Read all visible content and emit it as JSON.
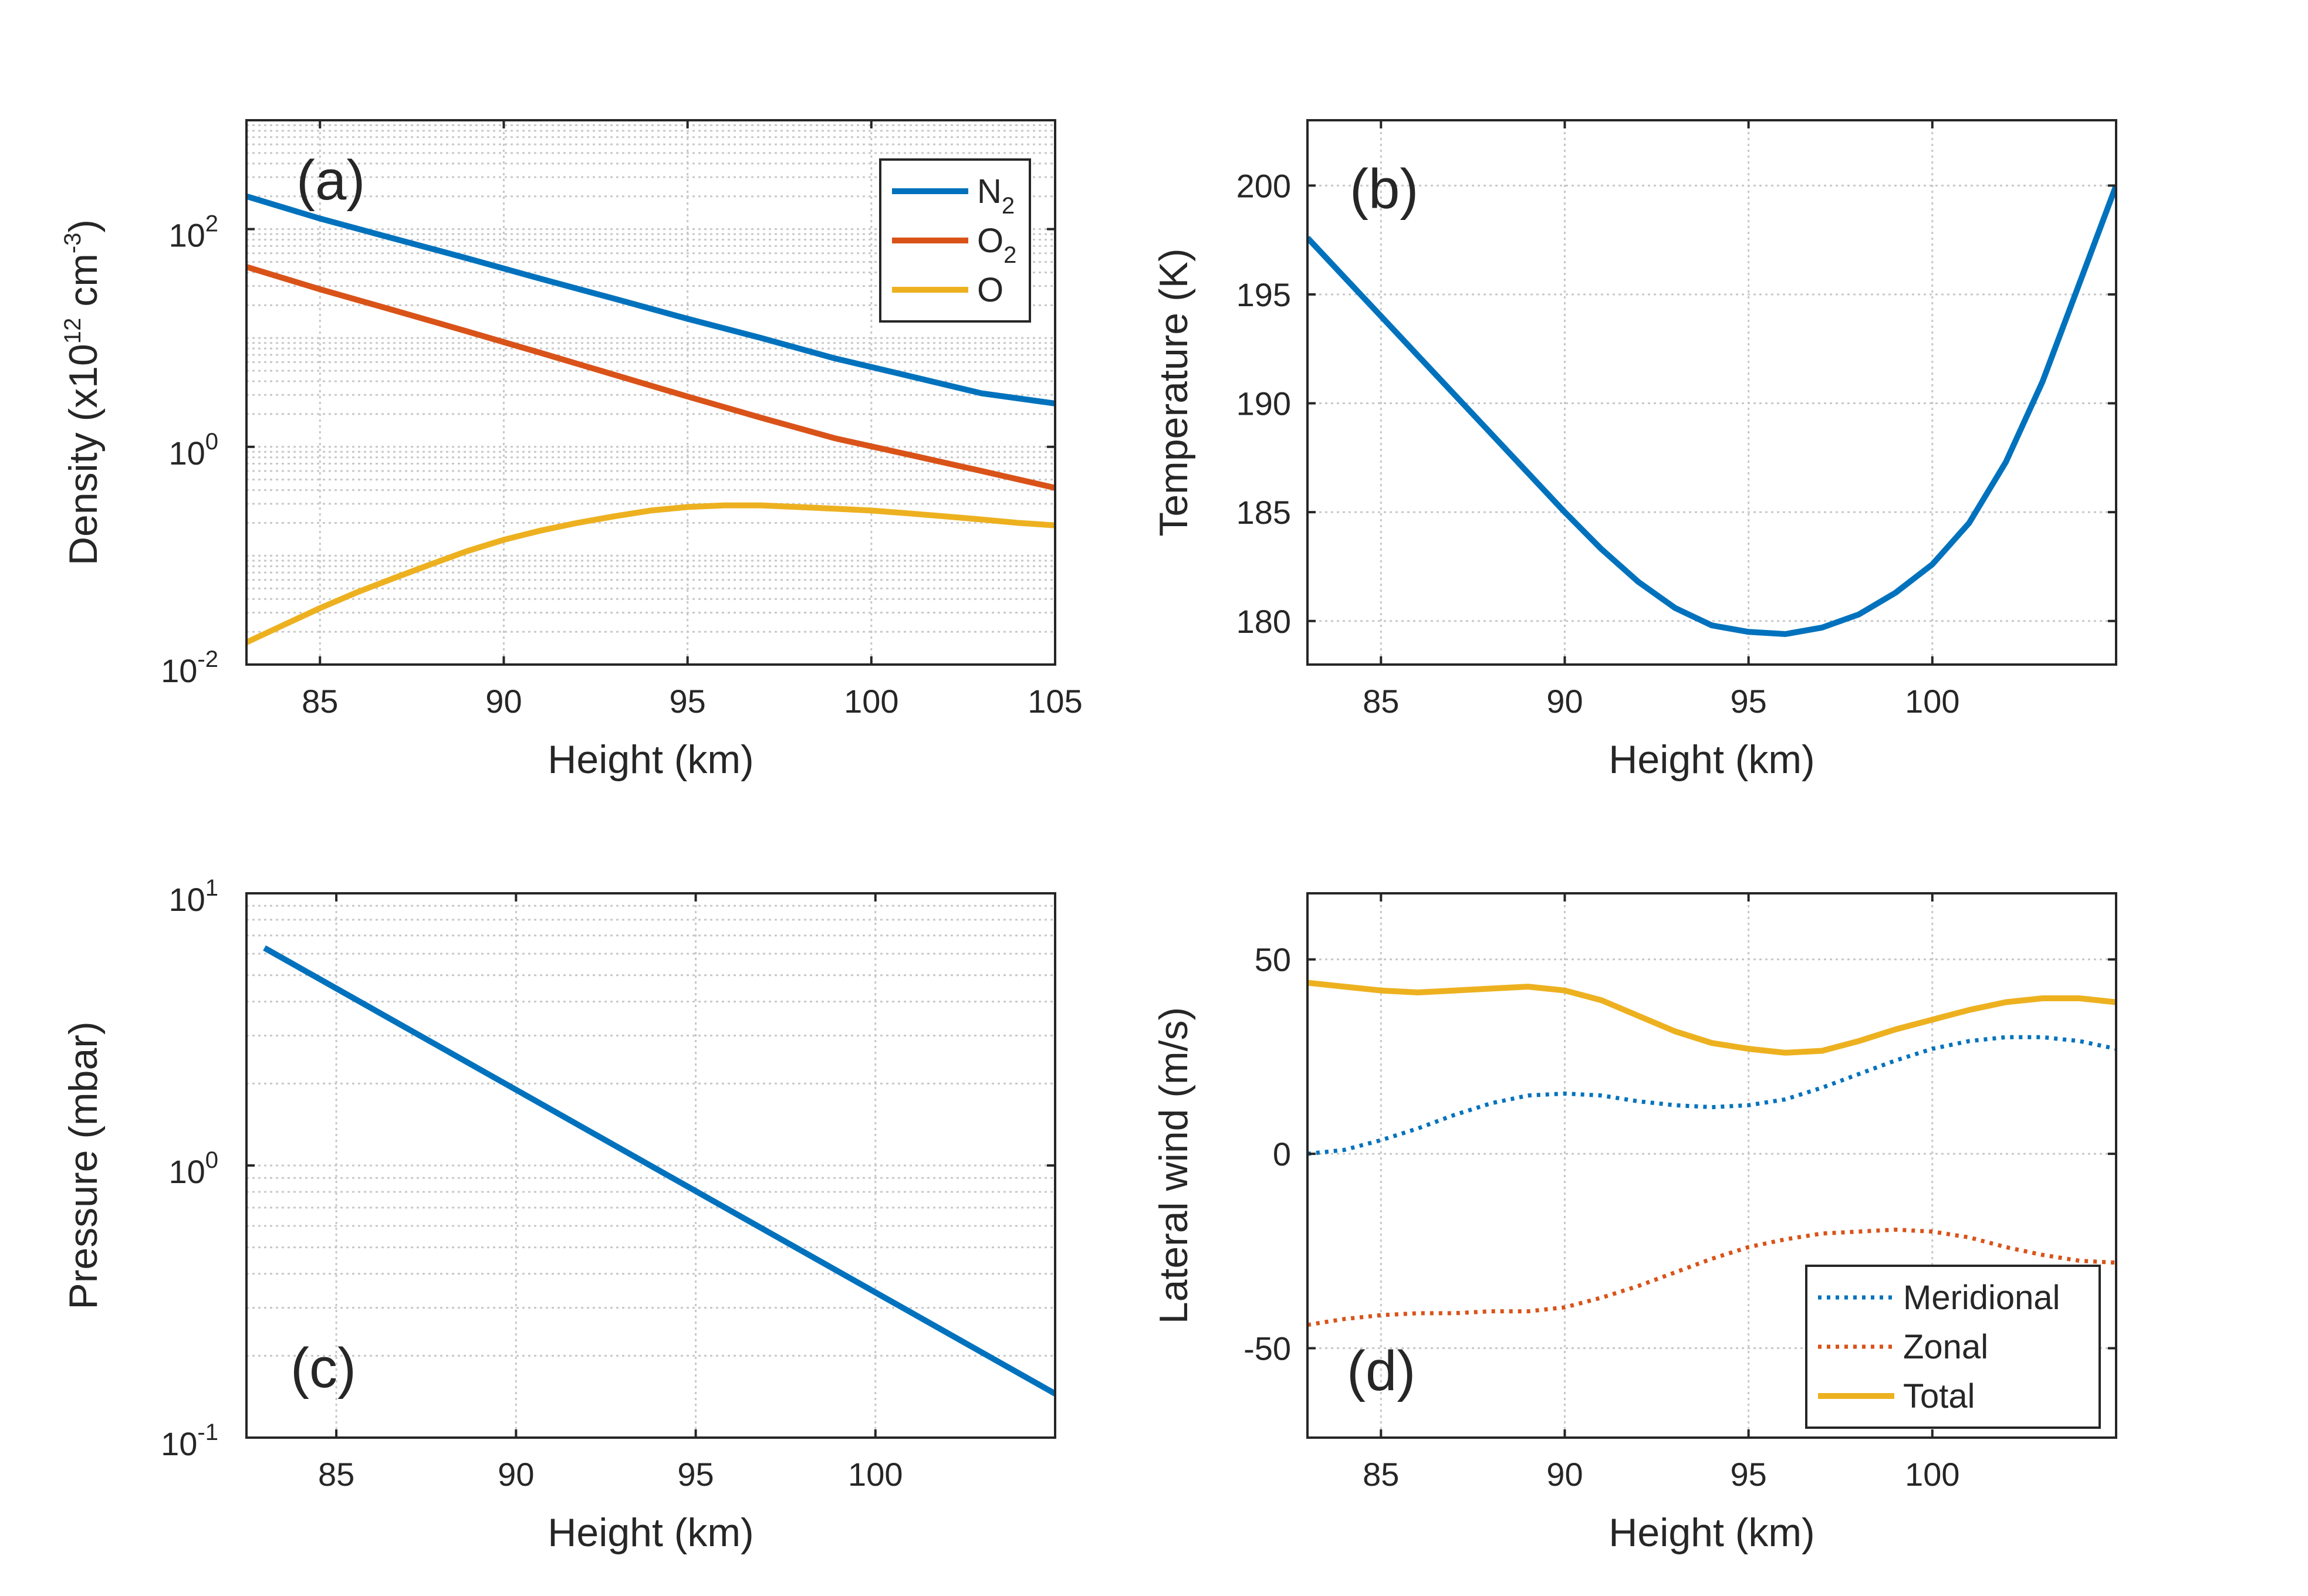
{
  "colors": {
    "blue": "#0072BD",
    "orange": "#D95319",
    "yellow": "#EDB120",
    "axis": "#262626",
    "grid": "#c8c8c8"
  },
  "chart_data": [
    {
      "id": "a",
      "type": "line",
      "panel_label": "(a)",
      "xlabel": "Height (km)",
      "ylabel": {
        "main": "Density (x10",
        "exp": "12",
        "unit": " cm",
        "unit_exp": "-3",
        "close": ")"
      },
      "yscale": "log",
      "xlim": [
        83,
        105
      ],
      "ylim": [
        0.01,
        1000
      ],
      "xticks": [
        85,
        90,
        95,
        100,
        105
      ],
      "yticks": [
        {
          "value": 0.01,
          "base": "10",
          "exp": "-2"
        },
        {
          "value": 1,
          "base": "10",
          "exp": "0"
        },
        {
          "value": 100,
          "base": "10",
          "exp": "2"
        }
      ],
      "legend_position": "top-right",
      "series": [
        {
          "name": "N",
          "sub": "2",
          "color": "#0072BD",
          "style": "solid",
          "x": [
            83,
            85,
            87,
            89,
            91,
            93,
            95,
            97,
            99,
            101,
            103,
            105
          ],
          "y": [
            200,
            125,
            82,
            54,
            35,
            23,
            15,
            10,
            6.5,
            4.5,
            3.1,
            2.5
          ]
        },
        {
          "name": "O",
          "sub": "2",
          "color": "#D95319",
          "style": "solid",
          "x": [
            83,
            85,
            87,
            89,
            91,
            93,
            95,
            97,
            99,
            101,
            103,
            105
          ],
          "y": [
            45,
            28,
            18,
            11.5,
            7.3,
            4.6,
            2.9,
            1.85,
            1.2,
            0.85,
            0.6,
            0.42
          ]
        },
        {
          "name": "O",
          "sub": "",
          "color": "#EDB120",
          "style": "solid",
          "x": [
            83,
            84,
            85,
            86,
            87,
            88,
            89,
            90,
            91,
            92,
            93,
            94,
            95,
            96,
            97,
            98,
            99,
            100,
            101,
            102,
            103,
            104,
            105
          ],
          "y": [
            0.016,
            0.023,
            0.033,
            0.046,
            0.062,
            0.083,
            0.11,
            0.14,
            0.17,
            0.2,
            0.23,
            0.26,
            0.28,
            0.29,
            0.29,
            0.28,
            0.27,
            0.26,
            0.245,
            0.23,
            0.215,
            0.2,
            0.19
          ]
        }
      ]
    },
    {
      "id": "b",
      "type": "line",
      "panel_label": "(b)",
      "xlabel": "Height (km)",
      "ylabel": "Temperature (K)",
      "yscale": "linear",
      "xlim": [
        83,
        105
      ],
      "ylim": [
        178,
        203
      ],
      "xticks": [
        85,
        90,
        95,
        100
      ],
      "yticks": [
        180,
        185,
        190,
        195,
        200
      ],
      "series": [
        {
          "name": "Temperature",
          "color": "#0072BD",
          "style": "solid",
          "x": [
            83,
            84,
            85,
            86,
            87,
            88,
            89,
            90,
            91,
            92,
            93,
            94,
            95,
            96,
            97,
            98,
            99,
            100,
            101,
            102,
            103,
            104,
            105
          ],
          "y": [
            197.6,
            195.8,
            194.0,
            192.2,
            190.4,
            188.6,
            186.8,
            185.0,
            183.3,
            181.8,
            180.6,
            179.8,
            179.5,
            179.4,
            179.7,
            180.3,
            181.3,
            182.6,
            184.5,
            187.3,
            191.0,
            195.5,
            200.0
          ]
        }
      ]
    },
    {
      "id": "c",
      "type": "line",
      "panel_label": "(c)",
      "xlabel": "Height (km)",
      "ylabel": "Pressure (mbar)",
      "yscale": "log",
      "xlim": [
        82.5,
        105
      ],
      "ylim": [
        0.1,
        10
      ],
      "xticks": [
        85,
        90,
        95,
        100
      ],
      "yticks": [
        {
          "value": 0.1,
          "base": "10",
          "exp": "-1"
        },
        {
          "value": 1,
          "base": "10",
          "exp": "0"
        },
        {
          "value": 10,
          "base": "10",
          "exp": "1"
        }
      ],
      "series": [
        {
          "name": "Pressure",
          "color": "#0072BD",
          "style": "solid",
          "x": [
            83,
            105
          ],
          "y": [
            6.3,
            0.145
          ]
        }
      ]
    },
    {
      "id": "d",
      "type": "line",
      "panel_label": "(d)",
      "xlabel": "Height (km)",
      "ylabel": "Lateral wind (m/s)",
      "yscale": "linear",
      "xlim": [
        83,
        105
      ],
      "ylim": [
        -73,
        67
      ],
      "xticks": [
        85,
        90,
        95,
        100
      ],
      "yticks": [
        -50,
        0,
        50
      ],
      "legend_position": "bottom-right",
      "series": [
        {
          "name": "Meridional",
          "color": "#0072BD",
          "style": "dotted",
          "x": [
            83,
            84,
            85,
            86,
            87,
            88,
            89,
            90,
            91,
            92,
            93,
            94,
            95,
            96,
            97,
            98,
            99,
            100,
            101,
            102,
            103,
            104,
            105
          ],
          "y": [
            0,
            1,
            3.5,
            6.5,
            10,
            13,
            15,
            15.5,
            15,
            13.5,
            12.5,
            12,
            12.5,
            14,
            17,
            20.5,
            24,
            27,
            29,
            30,
            30,
            29,
            27
          ]
        },
        {
          "name": "Zonal",
          "color": "#D95319",
          "style": "dotted",
          "x": [
            83,
            84,
            85,
            86,
            87,
            88,
            89,
            90,
            91,
            92,
            93,
            94,
            95,
            96,
            97,
            98,
            99,
            100,
            101,
            102,
            103,
            104,
            105
          ],
          "y": [
            -44,
            -42.5,
            -41.5,
            -41,
            -41,
            -40.5,
            -40.5,
            -39.5,
            -37,
            -34,
            -30.5,
            -27,
            -24,
            -22,
            -20.5,
            -20,
            -19.5,
            -20,
            -21.5,
            -24,
            -26,
            -27.5,
            -28
          ]
        },
        {
          "name": "Total",
          "color": "#EDB120",
          "style": "solid",
          "x": [
            83,
            84,
            85,
            86,
            87,
            88,
            89,
            90,
            91,
            92,
            93,
            94,
            95,
            96,
            97,
            98,
            99,
            100,
            101,
            102,
            103,
            104,
            105
          ],
          "y": [
            44,
            43,
            42,
            41.5,
            42,
            42.5,
            43,
            42,
            39.5,
            35.5,
            31.5,
            28.5,
            27,
            26,
            26.5,
            29,
            32,
            34.5,
            37,
            39,
            40,
            40,
            39
          ]
        }
      ]
    }
  ]
}
